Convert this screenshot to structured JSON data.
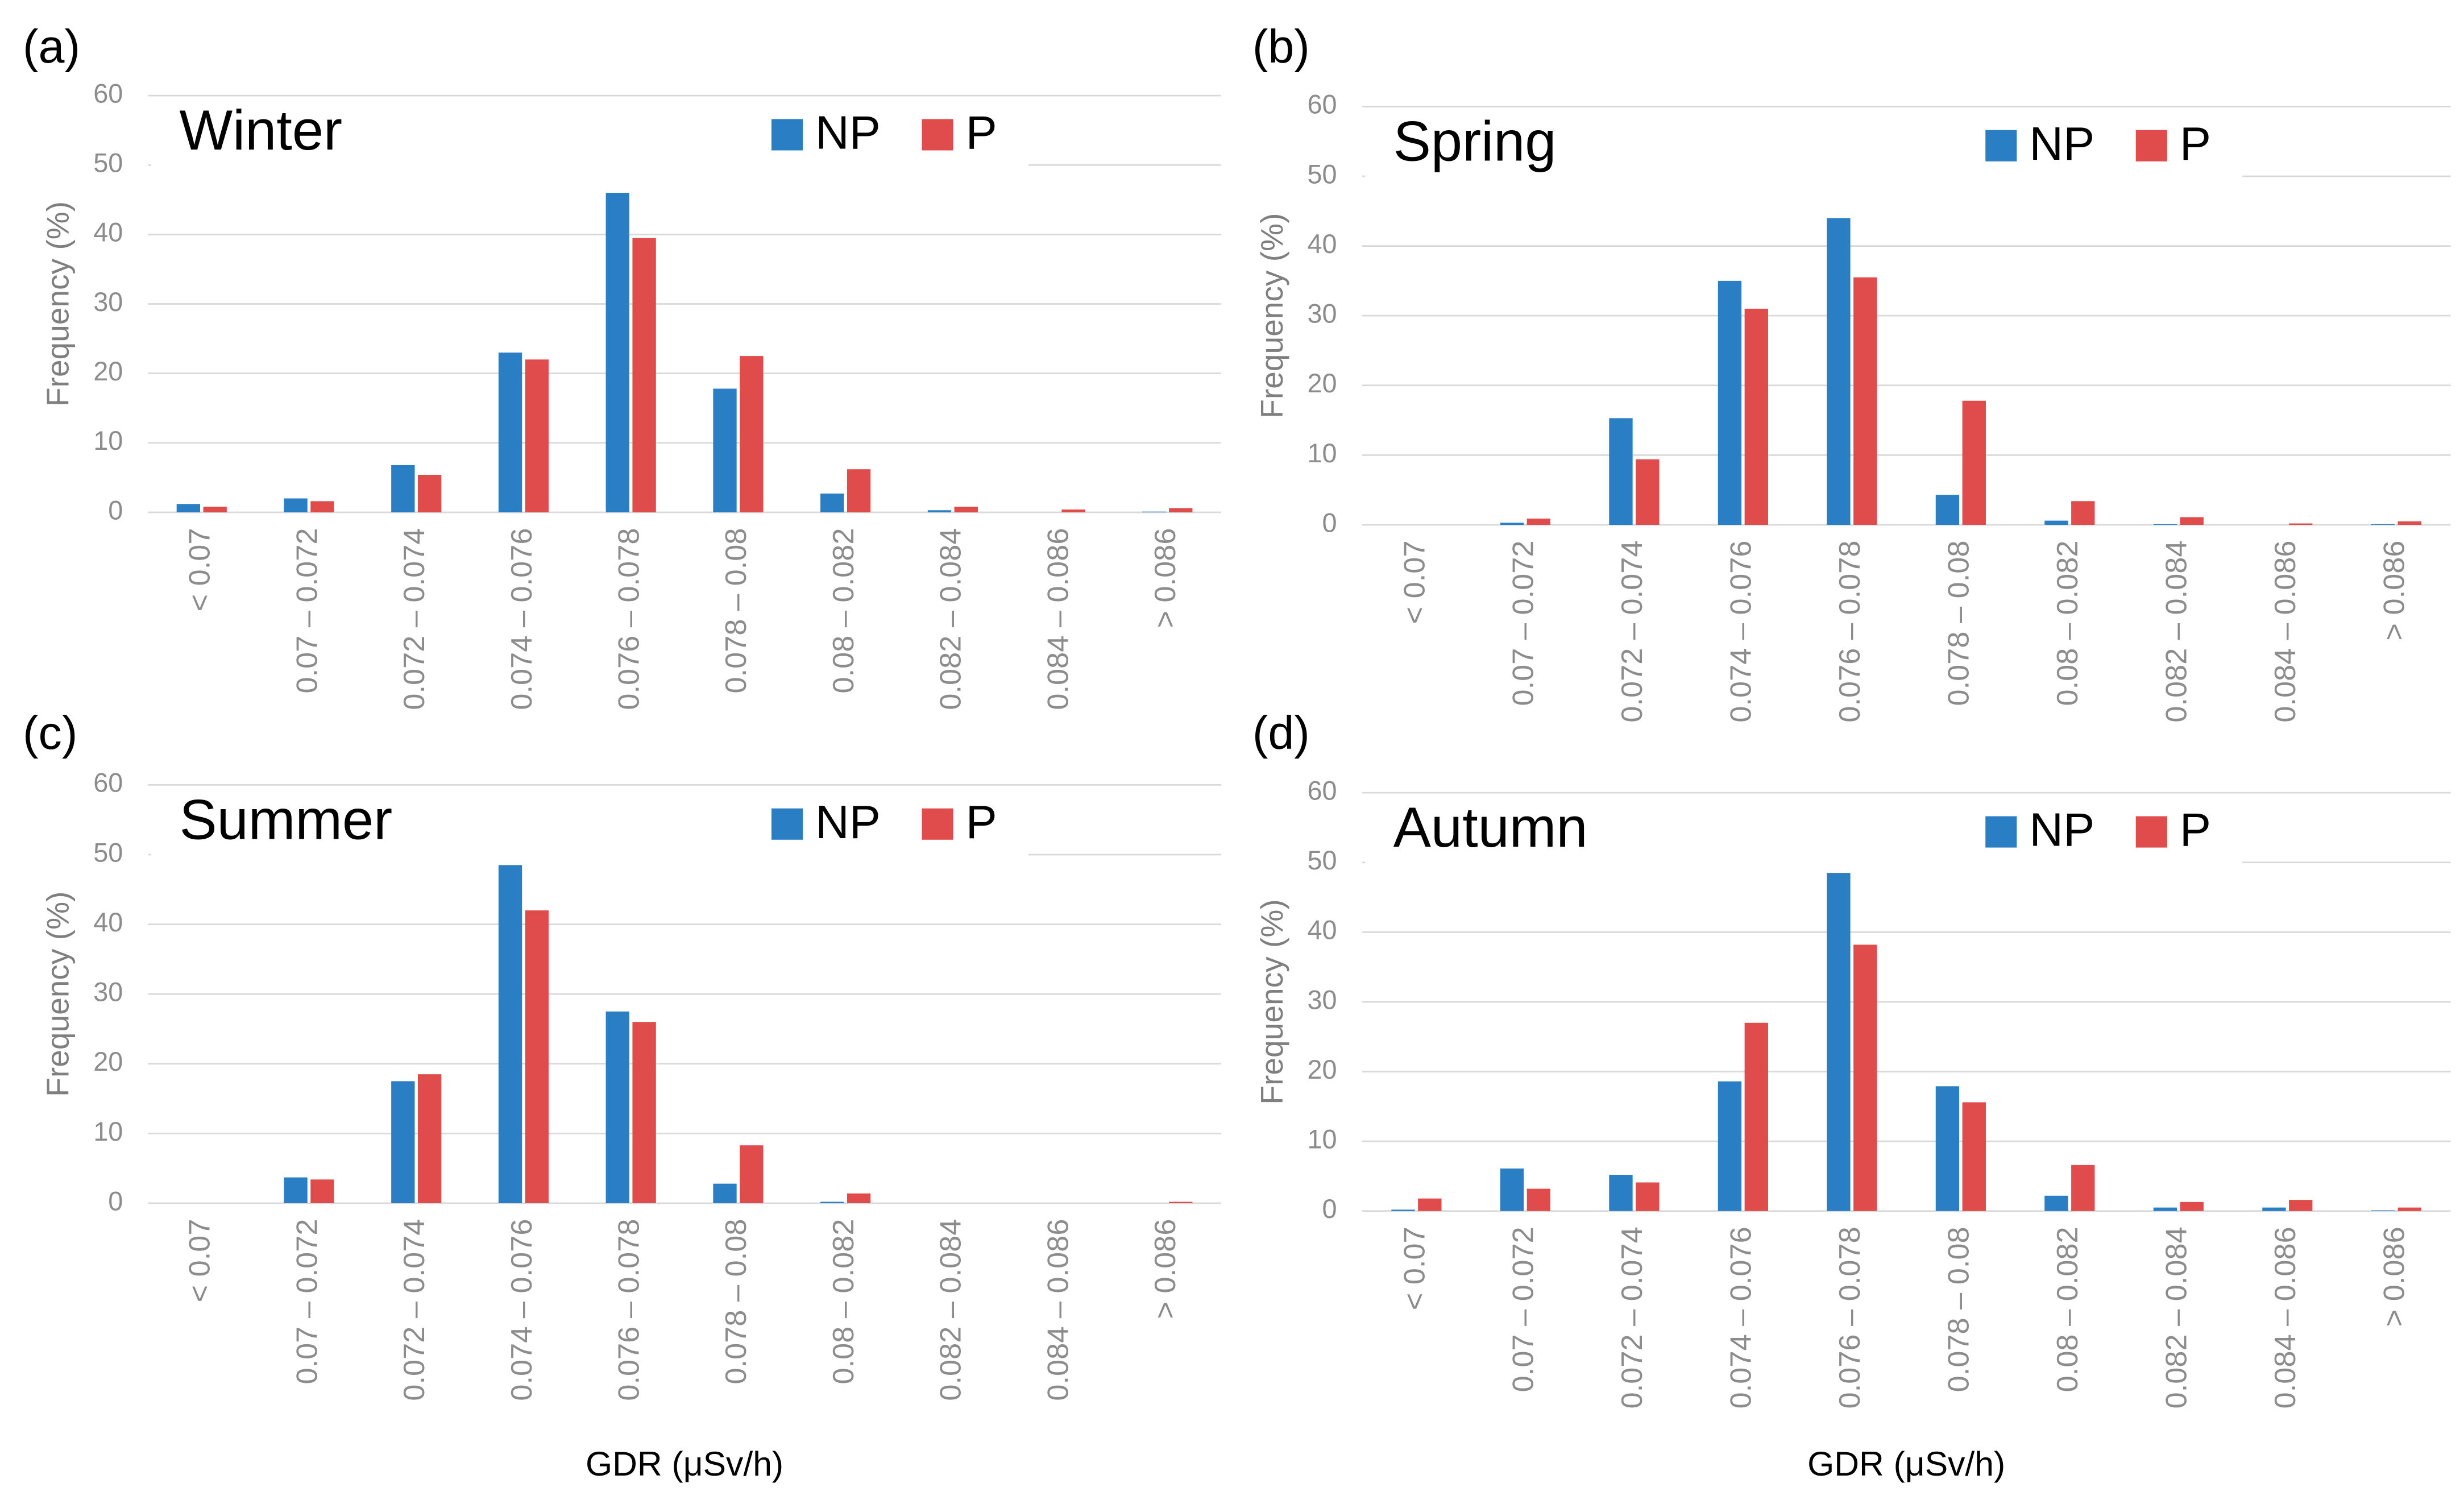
{
  "chart_data": [
    {
      "type": "bar",
      "panel": "(a)",
      "title": "Winter",
      "y_label": "Frequency (%)",
      "categories": [
        "< 0.07",
        "0.07 – 0.072",
        "0.072 – 0.074",
        "0.074 – 0.076",
        "0.076 – 0.078",
        "0.078 – 0.08",
        "0.08 – 0.082",
        "0.082 – 0.084",
        "0.084 – 0.086",
        "> 0.086"
      ],
      "series": [
        {
          "name": "NP",
          "color": "#2a7fc4",
          "values": [
            1.2,
            2,
            6.8,
            23,
            46,
            17.8,
            2.7,
            0.3,
            0,
            0.1
          ]
        },
        {
          "name": "P",
          "color": "#e04b4b",
          "values": [
            0.8,
            1.6,
            5.4,
            22,
            39.5,
            22.5,
            6.2,
            0.8,
            0.4,
            0.6
          ]
        }
      ],
      "ylim": [
        0,
        60
      ],
      "yticks": [
        0,
        10,
        20,
        30,
        40,
        50,
        60
      ],
      "grid": true
    },
    {
      "type": "bar",
      "panel": "(b)",
      "title": "Spring",
      "y_label": "Frequency (%)",
      "categories": [
        "< 0.07",
        "0.07 – 0.072",
        "0.072 – 0.074",
        "0.074 – 0.076",
        "0.076 – 0.078",
        "0.078 – 0.08",
        "0.08 – 0.082",
        "0.082 – 0.084",
        "0.084 – 0.086",
        "> 0.086"
      ],
      "series": [
        {
          "name": "NP",
          "color": "#2a7fc4",
          "values": [
            0,
            0.3,
            15.3,
            35,
            44,
            4.3,
            0.6,
            0.1,
            0,
            0.1
          ]
        },
        {
          "name": "P",
          "color": "#e04b4b",
          "values": [
            0,
            0.9,
            9.4,
            31,
            35.5,
            17.8,
            3.4,
            1.1,
            0.2,
            0.5
          ]
        }
      ],
      "ylim": [
        0,
        60
      ],
      "yticks": [
        0,
        10,
        20,
        30,
        40,
        50,
        60
      ],
      "grid": true
    },
    {
      "type": "bar",
      "panel": "(c)",
      "title": "Summer",
      "y_label": "Frequency (%)",
      "x_label": "GDR (μSv/h)",
      "categories": [
        "< 0.07",
        "0.07 – 0.072",
        "0.072 – 0.074",
        "0.074 – 0.076",
        "0.076 – 0.078",
        "0.078 – 0.08",
        "0.08 – 0.082",
        "0.082 – 0.084",
        "0.084 – 0.086",
        "> 0.086"
      ],
      "series": [
        {
          "name": "NP",
          "color": "#2a7fc4",
          "values": [
            0,
            3.7,
            17.5,
            48.5,
            27.5,
            2.8,
            0.2,
            0,
            0,
            0
          ]
        },
        {
          "name": "P",
          "color": "#e04b4b",
          "values": [
            0,
            3.4,
            18.5,
            42,
            26,
            8.3,
            1.4,
            0,
            0,
            0.2
          ]
        }
      ],
      "ylim": [
        0,
        60
      ],
      "yticks": [
        0,
        10,
        20,
        30,
        40,
        50,
        60
      ],
      "grid": true
    },
    {
      "type": "bar",
      "panel": "(d)",
      "title": "Autumn",
      "y_label": "Frequency (%)",
      "x_label": "GDR (μSv/h)",
      "categories": [
        "< 0.07",
        "0.07 – 0.072",
        "0.072 – 0.074",
        "0.074 – 0.076",
        "0.076 – 0.078",
        "0.078 – 0.08",
        "0.08 – 0.082",
        "0.082 – 0.084",
        "0.084 – 0.086",
        "> 0.086"
      ],
      "series": [
        {
          "name": "NP",
          "color": "#2a7fc4",
          "values": [
            0.2,
            6.1,
            5.2,
            18.6,
            48.5,
            17.9,
            2.2,
            0.5,
            0.5,
            0.1
          ]
        },
        {
          "name": "P",
          "color": "#e04b4b",
          "values": [
            1.8,
            3.2,
            4.1,
            27,
            38.2,
            15.6,
            6.6,
            1.3,
            1.6,
            0.5
          ]
        }
      ],
      "ylim": [
        0,
        60
      ],
      "yticks": [
        0,
        10,
        20,
        30,
        40,
        50,
        60
      ],
      "grid": true
    }
  ]
}
